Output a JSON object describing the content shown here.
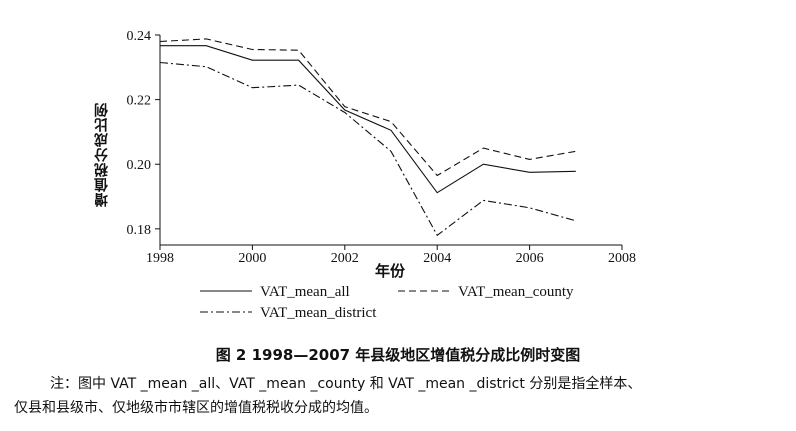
{
  "chart_data": {
    "type": "line",
    "title": "",
    "xlabel": "年份",
    "ylabel": "增值税分成比例",
    "x": [
      1998,
      1999,
      2000,
      2001,
      2002,
      2003,
      2004,
      2005,
      2006,
      2007
    ],
    "xlim": [
      1998,
      2008
    ],
    "ylim": [
      0.175,
      0.24
    ],
    "x_ticks": [
      "1998",
      "2000",
      "2002",
      "2004",
      "2006",
      "2008"
    ],
    "y_ticks": [
      "0.18",
      "0.20",
      "0.22",
      "0.24"
    ],
    "grid": false,
    "legend_position": "bottom",
    "series": [
      {
        "name": "VAT_mean_all",
        "style": "solid",
        "color": "#111111",
        "values": [
          0.2367,
          0.2367,
          0.2322,
          0.2322,
          0.2168,
          0.2105,
          0.1912,
          0.2,
          0.1975,
          0.1978
        ]
      },
      {
        "name": "VAT_mean_county",
        "style": "dashed",
        "color": "#111111",
        "values": [
          0.238,
          0.2388,
          0.2355,
          0.2353,
          0.2178,
          0.2132,
          0.1965,
          0.205,
          0.2015,
          0.204
        ]
      },
      {
        "name": "VAT_mean_district",
        "style": "dashdot",
        "color": "#111111",
        "values": [
          0.2315,
          0.2302,
          0.2237,
          0.2245,
          0.216,
          0.204,
          0.178,
          0.1888,
          0.1865,
          0.1825
        ]
      }
    ]
  },
  "caption": "图 2   1998—2007 年县级地区增值税分成比例时变图",
  "note_line1": "注：图中 VAT _mean _all、VAT _mean _county 和 VAT _mean _district 分别是指全样本、",
  "note_line2": "仅县和县级市、仅地级市市辖区的增值税税收分成的均值。"
}
